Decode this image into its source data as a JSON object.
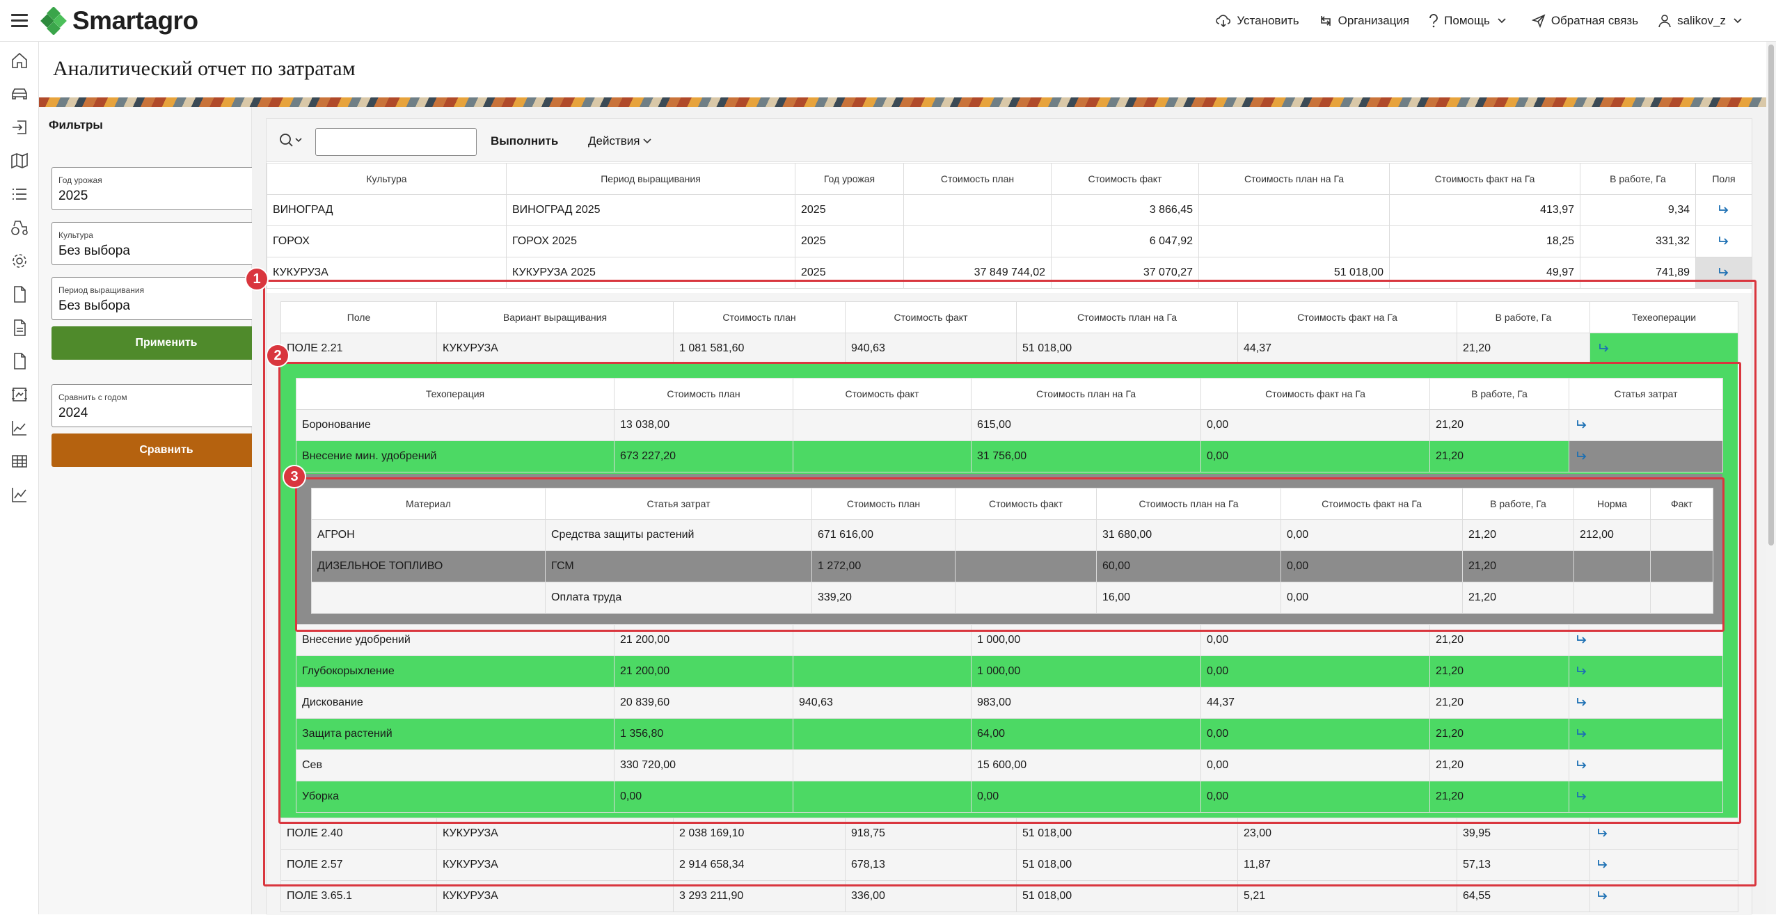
{
  "app": {
    "brand": "Smartagro",
    "brand_color": "#3aa54a",
    "accent_green": "#4cd964",
    "alert_red": "#d9363e"
  },
  "topnav": {
    "install": "Установить",
    "organization": "Организация",
    "help": "Помощь",
    "feedback": "Обратная связь",
    "user": "salikov_z"
  },
  "page": {
    "title": "Аналитический отчет по затратам"
  },
  "filters": {
    "title": "Фильтры",
    "year": {
      "label": "Год урожая",
      "value": "2025"
    },
    "culture": {
      "label": "Культура",
      "value": "Без выбора"
    },
    "period": {
      "label": "Период выращивания",
      "value": "Без выбора"
    },
    "apply": "Применить",
    "compare_year": {
      "label": "Сравнить с годом",
      "value": "2024"
    },
    "compare": "Сравнить"
  },
  "toolbar": {
    "execute": "Выполнить",
    "actions": "Действия",
    "search_value": ""
  },
  "table1": {
    "headers": [
      "Культура",
      "Период выращивания",
      "Год урожая",
      "Стоимость план",
      "Стоимость факт",
      "Стоимость план на Га",
      "Стоимость факт на Га",
      "В работе, Га",
      "Поля"
    ],
    "rows": [
      [
        "ВИНОГРАД",
        "ВИНОГРАД 2025",
        "2025",
        "",
        "3 866,45",
        "",
        "413,97",
        "9,34"
      ],
      [
        "ГОРОХ",
        "ГОРОХ 2025",
        "2025",
        "",
        "6 047,92",
        "",
        "18,25",
        "331,32"
      ],
      [
        "КУКУРУЗА",
        "КУКУРУЗА 2025",
        "2025",
        "37 849 744,02",
        "37 070,27",
        "51 018,00",
        "49,97",
        "741,89"
      ]
    ]
  },
  "table2": {
    "headers": [
      "Поле",
      "Вариант выращивания",
      "Стоимость план",
      "Стоимость факт",
      "Стоимость план на Га",
      "Стоимость факт на Га",
      "В работе, Га",
      "Техеоперации"
    ],
    "rows": [
      [
        "ПОЛЕ 2.21",
        "КУКУРУЗА",
        "1 081 581,60",
        "940,63",
        "51 018,00",
        "44,37",
        "21,20"
      ],
      [
        "ПОЛЕ 2.40",
        "КУКУРУЗА",
        "2 038 169,10",
        "918,75",
        "51 018,00",
        "23,00",
        "39,95"
      ],
      [
        "ПОЛЕ 2.57",
        "КУКУРУЗА",
        "2 914 658,34",
        "678,13",
        "51 018,00",
        "11,87",
        "57,13"
      ],
      [
        "ПОЛЕ 3.65.1",
        "КУКУРУЗА",
        "3 293 211,90",
        "336,00",
        "51 018,00",
        "5,21",
        "64,55"
      ]
    ]
  },
  "table3": {
    "headers": [
      "Техоперация",
      "Стоимость план",
      "Стоимость факт",
      "Стоимость план на Га",
      "Стоимость факт на Га",
      "В работе, Га",
      "Статья затрат"
    ],
    "rows_top": [
      [
        "Боронование",
        "13 038,00",
        "",
        "615,00",
        "0,00",
        "21,20"
      ],
      [
        "Внесение мин. удобрений",
        "673 227,20",
        "",
        "31 756,00",
        "0,00",
        "21,20"
      ]
    ],
    "rows_bottom": [
      [
        "Внесение удобрений",
        "21 200,00",
        "",
        "1 000,00",
        "0,00",
        "21,20"
      ],
      [
        "Глубокорыхление",
        "21 200,00",
        "",
        "1 000,00",
        "0,00",
        "21,20"
      ],
      [
        "Дискование",
        "20 839,60",
        "940,63",
        "983,00",
        "44,37",
        "21,20"
      ],
      [
        "Защита растений",
        "1 356,80",
        "",
        "64,00",
        "0,00",
        "21,20"
      ],
      [
        "Сев",
        "330 720,00",
        "",
        "15 600,00",
        "0,00",
        "21,20"
      ],
      [
        "Уборка",
        "0,00",
        "",
        "0,00",
        "0,00",
        "21,20"
      ]
    ]
  },
  "table4": {
    "headers": [
      "Материал",
      "Статья затрат",
      "Стоимость план",
      "Стоимость факт",
      "Стоимость план на Га",
      "Стоимость факт на Га",
      "В работе, Га",
      "Норма",
      "Факт"
    ],
    "rows": [
      [
        "АГРОН",
        "Средства защиты растений",
        "671 616,00",
        "",
        "31 680,00",
        "0,00",
        "21,20",
        "212,00",
        ""
      ],
      [
        "ДИЗЕЛЬНОЕ ТОПЛИВО",
        "ГСМ",
        "1 272,00",
        "",
        "60,00",
        "0,00",
        "21,20",
        "",
        ""
      ],
      [
        "",
        "Оплата труда",
        "339,20",
        "",
        "16,00",
        "0,00",
        "21,20",
        "",
        ""
      ]
    ]
  },
  "badges": [
    "1",
    "2",
    "3"
  ],
  "icons": {
    "expand": "arrow-down-right-icon"
  }
}
